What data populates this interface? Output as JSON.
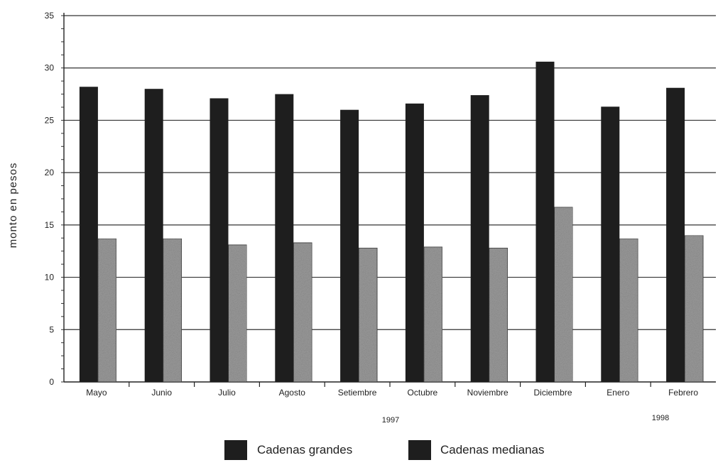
{
  "chart_data": {
    "type": "bar",
    "xlabel": "",
    "ylabel": "monto en pesos",
    "ylim": [
      0,
      35
    ],
    "yticks": [
      0,
      5,
      10,
      15,
      20,
      25,
      30,
      35
    ],
    "grid": true,
    "legend_position": "bottom",
    "categories": [
      "Mayo",
      "Junio",
      "Julio",
      "Agosto",
      "Setiembre",
      "Octubre",
      "Noviembre",
      "Diciembre",
      "Enero",
      "Febrero"
    ],
    "year_labels": [
      "1997",
      "1998"
    ],
    "series": [
      {
        "name": "Cadenas grandes",
        "color": "#1e1e1e",
        "values": [
          28.2,
          28.0,
          27.1,
          27.5,
          26.0,
          26.6,
          27.4,
          30.6,
          26.3,
          28.1
        ]
      },
      {
        "name": "Cadenas medianas",
        "color": "#9a9a9a",
        "values": [
          13.7,
          13.7,
          13.1,
          13.3,
          12.8,
          12.9,
          12.8,
          16.7,
          13.7,
          14.0
        ]
      }
    ]
  }
}
